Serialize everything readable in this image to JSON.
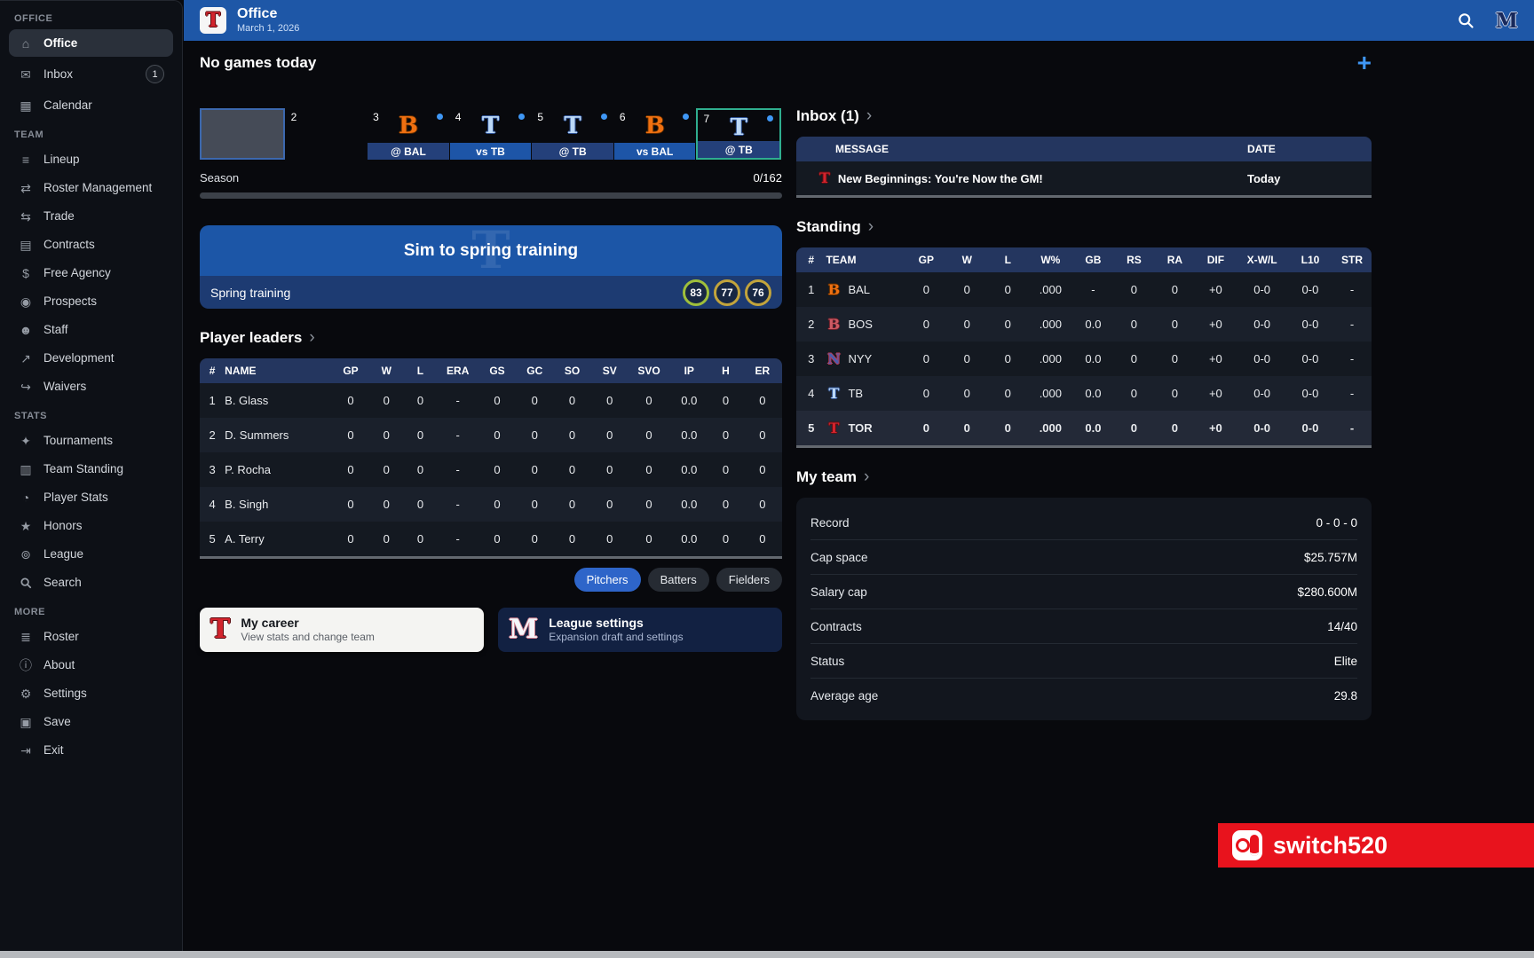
{
  "sidebar": {
    "sections": [
      {
        "label": "OFFICE",
        "items": [
          {
            "label": "Office",
            "icon": "office",
            "active": true
          },
          {
            "label": "Inbox",
            "icon": "inbox",
            "badge": "1"
          },
          {
            "label": "Calendar",
            "icon": "calendar"
          }
        ]
      },
      {
        "label": "TEAM",
        "items": [
          {
            "label": "Lineup",
            "icon": "lineup"
          },
          {
            "label": "Roster Management",
            "icon": "roster-management"
          },
          {
            "label": "Trade",
            "icon": "trade"
          },
          {
            "label": "Contracts",
            "icon": "contracts"
          },
          {
            "label": "Free Agency",
            "icon": "free-agency"
          },
          {
            "label": "Prospects",
            "icon": "prospects"
          },
          {
            "label": "Staff",
            "icon": "staff"
          },
          {
            "label": "Development",
            "icon": "development"
          },
          {
            "label": "Waivers",
            "icon": "waivers"
          }
        ]
      },
      {
        "label": "STATS",
        "items": [
          {
            "label": "Tournaments",
            "icon": "tournaments"
          },
          {
            "label": "Team Standing",
            "icon": "team-standing"
          },
          {
            "label": "Player Stats",
            "icon": "player-stats"
          },
          {
            "label": "Honors",
            "icon": "honors"
          },
          {
            "label": "League",
            "icon": "league"
          },
          {
            "label": "Search",
            "icon": "search"
          }
        ]
      },
      {
        "label": "MORE",
        "items": [
          {
            "label": "Roster",
            "icon": "roster"
          },
          {
            "label": "About",
            "icon": "about"
          },
          {
            "label": "Settings",
            "icon": "settings"
          },
          {
            "label": "Save",
            "icon": "save"
          },
          {
            "label": "Exit",
            "icon": "exit"
          }
        ]
      }
    ]
  },
  "header": {
    "title": "Office",
    "date": "March 1, 2026",
    "team": "TOR"
  },
  "main": {
    "no_games": "No games today",
    "schedule": {
      "days": [
        {
          "day": "",
          "type": "today"
        },
        {
          "day": "2",
          "type": "blank"
        },
        {
          "day": "3",
          "team": "BAL",
          "game": "@ BAL",
          "home": false
        },
        {
          "day": "4",
          "team": "TB",
          "game": "vs TB",
          "home": true
        },
        {
          "day": "5",
          "team": "TB",
          "game": "@ TB",
          "home": false
        },
        {
          "day": "6",
          "team": "BAL",
          "game": "vs BAL",
          "home": true
        },
        {
          "day": "7",
          "team": "TB",
          "game": "@ TB",
          "home": false,
          "selected": true
        }
      ]
    },
    "season": {
      "label": "Season",
      "progress": "0/162"
    },
    "sim_button": "Sim to spring training",
    "spring": {
      "label": "Spring training",
      "ratings": [
        {
          "value": "83",
          "color": "#9fbf3b"
        },
        {
          "value": "77",
          "color": "#c2a43c"
        },
        {
          "value": "76",
          "color": "#c2a43c"
        }
      ]
    },
    "player_leaders": {
      "title": "Player leaders",
      "columns": [
        "#",
        "NAME",
        "GP",
        "W",
        "L",
        "ERA",
        "GS",
        "GC",
        "SO",
        "SV",
        "SVO",
        "IP",
        "H",
        "ER"
      ],
      "rows": [
        [
          "1",
          "B. Glass",
          "0",
          "0",
          "0",
          "-",
          "0",
          "0",
          "0",
          "0",
          "0",
          "0.0",
          "0",
          "0"
        ],
        [
          "2",
          "D. Summers",
          "0",
          "0",
          "0",
          "-",
          "0",
          "0",
          "0",
          "0",
          "0",
          "0.0",
          "0",
          "0"
        ],
        [
          "3",
          "P. Rocha",
          "0",
          "0",
          "0",
          "-",
          "0",
          "0",
          "0",
          "0",
          "0",
          "0.0",
          "0",
          "0"
        ],
        [
          "4",
          "B. Singh",
          "0",
          "0",
          "0",
          "-",
          "0",
          "0",
          "0",
          "0",
          "0",
          "0.0",
          "0",
          "0"
        ],
        [
          "5",
          "A. Terry",
          "0",
          "0",
          "0",
          "-",
          "0",
          "0",
          "0",
          "0",
          "0",
          "0.0",
          "0",
          "0"
        ]
      ]
    },
    "filters": [
      {
        "label": "Pitchers",
        "active": true
      },
      {
        "label": "Batters",
        "active": false
      },
      {
        "label": "Fielders",
        "active": false
      }
    ],
    "cards": [
      {
        "title": "My career",
        "subtitle": "View stats and change team",
        "logo": "TOR",
        "style": "light"
      },
      {
        "title": "League settings",
        "subtitle": "Expansion draft and settings",
        "logo": "M",
        "style": "dark"
      }
    ]
  },
  "inbox": {
    "title": "Inbox (1)",
    "columns": [
      "MESSAGE",
      "DATE"
    ],
    "rows": [
      {
        "logo": "TOR",
        "message": "New Beginnings: You're Now the GM!",
        "date": "Today"
      }
    ]
  },
  "standing": {
    "title": "Standing",
    "columns": [
      "#",
      "TEAM",
      "GP",
      "W",
      "L",
      "W%",
      "GB",
      "RS",
      "RA",
      "DIF",
      "X-W/L",
      "L10",
      "STR"
    ],
    "rows": [
      {
        "rank": "1",
        "team": "BAL",
        "gp": "0",
        "w": "0",
        "l": "0",
        "wpct": ".000",
        "gb": "-",
        "rs": "0",
        "ra": "0",
        "dif": "+0",
        "xwl": "0-0",
        "l10": "0-0",
        "str": "-",
        "my_team": false
      },
      {
        "rank": "2",
        "team": "BOS",
        "gp": "0",
        "w": "0",
        "l": "0",
        "wpct": ".000",
        "gb": "0.0",
        "rs": "0",
        "ra": "0",
        "dif": "+0",
        "xwl": "0-0",
        "l10": "0-0",
        "str": "-",
        "my_team": false
      },
      {
        "rank": "3",
        "team": "NYY",
        "gp": "0",
        "w": "0",
        "l": "0",
        "wpct": ".000",
        "gb": "0.0",
        "rs": "0",
        "ra": "0",
        "dif": "+0",
        "xwl": "0-0",
        "l10": "0-0",
        "str": "-",
        "my_team": false
      },
      {
        "rank": "4",
        "team": "TB",
        "gp": "0",
        "w": "0",
        "l": "0",
        "wpct": ".000",
        "gb": "0.0",
        "rs": "0",
        "ra": "0",
        "dif": "+0",
        "xwl": "0-0",
        "l10": "0-0",
        "str": "-",
        "my_team": false
      },
      {
        "rank": "5",
        "team": "TOR",
        "gp": "0",
        "w": "0",
        "l": "0",
        "wpct": ".000",
        "gb": "0.0",
        "rs": "0",
        "ra": "0",
        "dif": "+0",
        "xwl": "0-0",
        "l10": "0-0",
        "str": "-",
        "my_team": true
      }
    ]
  },
  "my_team": {
    "title": "My team",
    "rows": [
      {
        "label": "Record",
        "value": "0 - 0 - 0"
      },
      {
        "label": "Cap space",
        "value": "$25.757M"
      },
      {
        "label": "Salary cap",
        "value": "$280.600M"
      },
      {
        "label": "Contracts",
        "value": "14/40"
      },
      {
        "label": "Status",
        "value": "Elite"
      },
      {
        "label": "Average age",
        "value": "29.8"
      }
    ]
  },
  "watermark": {
    "text": "switch520"
  },
  "colors": {
    "accent_blue": "#1e57a7",
    "selected_green": "#2fae8f",
    "dot_blue": "#3f97f5",
    "watermark_red": "#e8131d"
  }
}
